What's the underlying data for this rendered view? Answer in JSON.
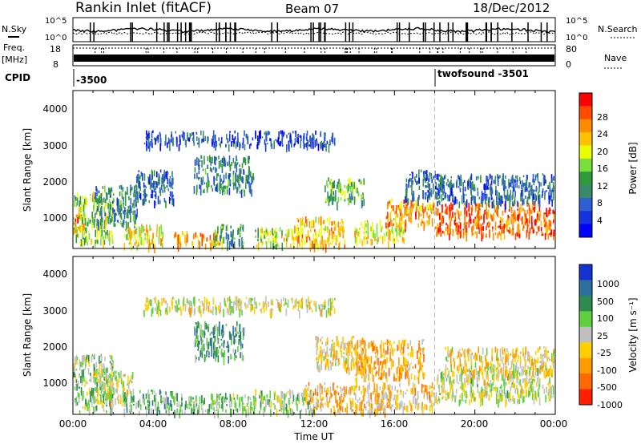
{
  "header": {
    "station": "Rankin Inlet (fitACF)",
    "beam": "Beam 07",
    "date": "18/Dec/2012"
  },
  "noise_panel": {
    "left_label": "N.Sky",
    "right_label": "N.Search",
    "ticks_left": [
      "10^5",
      "10^0"
    ],
    "ticks_right": [
      "10^5",
      "10^0"
    ]
  },
  "freq_panel": {
    "left_label_1": "Freq.",
    "left_label_2": "[MHz]",
    "right_label": "Nave",
    "freq_ticks": [
      "18",
      "8"
    ],
    "nave_ticks": [
      "80",
      "0"
    ]
  },
  "cpid": {
    "label": "CPID",
    "segments": [
      {
        "text": "-3500",
        "start_hour": 0
      },
      {
        "text": "twofsound -3501",
        "start_hour": 18
      }
    ]
  },
  "x_axis": {
    "title": "Time UT",
    "ticks": [
      "00:00",
      "04:00",
      "08:00",
      "12:00",
      "16:00",
      "20:00",
      "00:00"
    ]
  },
  "power_panel": {
    "ylabel": "Slant Range [km]",
    "yticks": [
      "4000",
      "3000",
      "2000",
      "1000"
    ],
    "cbar_label": "Power [dB]",
    "cbar_ticks": [
      "28",
      "24",
      "20",
      "16",
      "12",
      "8",
      "4"
    ],
    "cbar_colors": [
      "#ff0000",
      "#ff4a00",
      "#ff8c00",
      "#ffc200",
      "#e8ff00",
      "#7adf3a",
      "#2f9a3a",
      "#3a8a6a",
      "#2f5fd0",
      "#1432e0",
      "#0000ff"
    ]
  },
  "velocity_panel": {
    "ylabel": "Slant Range [km]",
    "yticks": [
      "4000",
      "3000",
      "2000",
      "1000"
    ],
    "cbar_label": "Velocity [m s⁻¹]",
    "cbar_ticks": [
      "1000",
      "500",
      "100",
      "25",
      "-25",
      "-100",
      "-500",
      "-1000"
    ],
    "cbar_colors": [
      "#1432d0",
      "#2f6fa0",
      "#2f8a50",
      "#5fd040",
      "#c0c0c0",
      "#ffd000",
      "#ff9a00",
      "#ff6a00",
      "#ff2000"
    ]
  },
  "chart_data": {
    "type": "heatmap",
    "x_unit": "hours UT",
    "xlim": [
      0,
      24
    ],
    "ylim": [
      200,
      4600
    ],
    "panels": [
      {
        "name": "power",
        "clim": [
          0,
          32
        ],
        "blobs": [
          {
            "t0": 0.0,
            "t1": 2.0,
            "r0": 400,
            "r1": 1800,
            "level": 16
          },
          {
            "t0": 0.0,
            "t1": 0.5,
            "r0": 700,
            "r1": 1200,
            "level": 26
          },
          {
            "t0": 1.0,
            "t1": 3.2,
            "r0": 900,
            "r1": 2000,
            "level": 10
          },
          {
            "t0": 2.5,
            "t1": 4.5,
            "r0": 300,
            "r1": 900,
            "level": 20
          },
          {
            "t0": 3.0,
            "t1": 5.0,
            "r0": 1500,
            "r1": 2400,
            "level": 8
          },
          {
            "t0": 5.0,
            "t1": 7.5,
            "r0": 300,
            "r1": 700,
            "level": 22
          },
          {
            "t0": 7.0,
            "t1": 8.5,
            "r0": 300,
            "r1": 900,
            "level": 12
          },
          {
            "t0": 9.0,
            "t1": 11.0,
            "r0": 300,
            "r1": 800,
            "level": 18
          },
          {
            "t0": 11.0,
            "t1": 13.5,
            "r0": 300,
            "r1": 1100,
            "level": 22
          },
          {
            "t0": 12.5,
            "t1": 14.5,
            "r0": 1500,
            "r1": 2200,
            "level": 14
          },
          {
            "t0": 14.0,
            "t1": 16.5,
            "r0": 400,
            "r1": 1000,
            "level": 20
          },
          {
            "t0": 15.5,
            "t1": 18.0,
            "r0": 900,
            "r1": 1600,
            "level": 24
          },
          {
            "t0": 16.5,
            "t1": 18.5,
            "r0": 1600,
            "r1": 2400,
            "level": 8
          },
          {
            "t0": 18.0,
            "t1": 24.0,
            "r0": 600,
            "r1": 1500,
            "level": 27
          },
          {
            "t0": 18.0,
            "t1": 24.0,
            "r0": 1500,
            "r1": 2300,
            "level": 8
          },
          {
            "t0": 3.5,
            "t1": 13.0,
            "r0": 3100,
            "r1": 3500,
            "level": 6
          },
          {
            "t0": 6.0,
            "t1": 9.0,
            "r0": 1800,
            "r1": 2800,
            "level": 10
          }
        ]
      },
      {
        "name": "velocity",
        "clim": [
          -1000,
          1000
        ],
        "blobs": [
          {
            "t0": 0.0,
            "t1": 2.0,
            "r0": 300,
            "r1": 1900,
            "level": 150
          },
          {
            "t0": 1.0,
            "t1": 3.0,
            "r0": 600,
            "r1": 1500,
            "level": 0
          },
          {
            "t0": 2.5,
            "t1": 5.0,
            "r0": 300,
            "r1": 900,
            "level": 300
          },
          {
            "t0": 5.0,
            "t1": 9.0,
            "r0": 300,
            "r1": 800,
            "level": 200
          },
          {
            "t0": 6.0,
            "t1": 8.5,
            "r0": 1800,
            "r1": 2800,
            "level": 400
          },
          {
            "t0": 9.0,
            "t1": 12.0,
            "r0": 300,
            "r1": 900,
            "level": 100
          },
          {
            "t0": 11.5,
            "t1": 15.5,
            "r0": 300,
            "r1": 1100,
            "level": -300
          },
          {
            "t0": 12.0,
            "t1": 14.5,
            "r0": 1500,
            "r1": 2400,
            "level": -200
          },
          {
            "t0": 14.0,
            "t1": 17.5,
            "r0": 1200,
            "r1": 2300,
            "level": -350
          },
          {
            "t0": 15.0,
            "t1": 18.0,
            "r0": 400,
            "r1": 1100,
            "level": -250
          },
          {
            "t0": 18.0,
            "t1": 24.0,
            "r0": 600,
            "r1": 1500,
            "level": 0
          },
          {
            "t0": 18.5,
            "t1": 24.0,
            "r0": 1400,
            "r1": 2100,
            "level": -150
          },
          {
            "t0": 3.5,
            "t1": 13.0,
            "r0": 3100,
            "r1": 3500,
            "level": -50
          }
        ]
      }
    ]
  }
}
